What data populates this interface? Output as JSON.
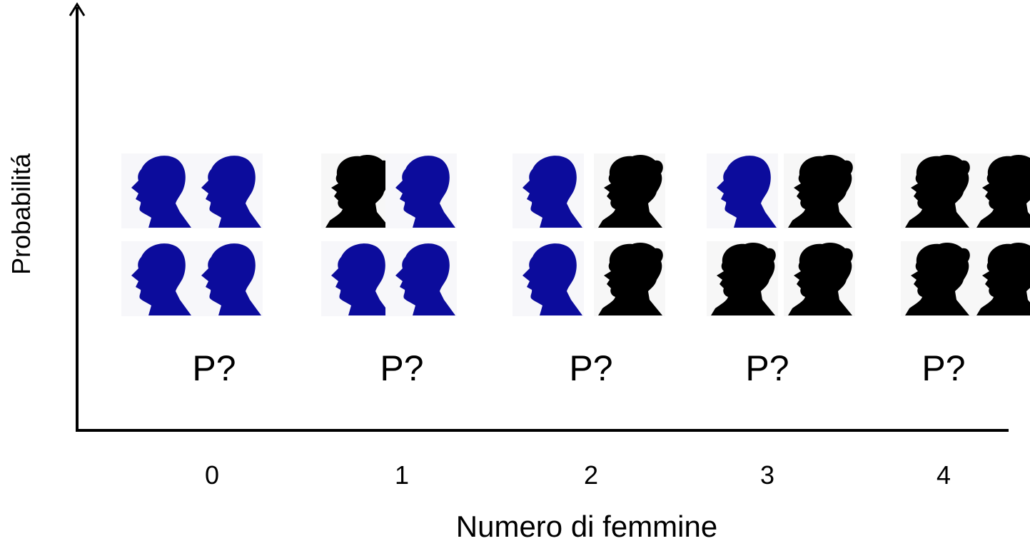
{
  "axes": {
    "y_label": "Probabilitá",
    "x_label": "Numero di femmine"
  },
  "groups": [
    {
      "category": "0",
      "label": "P?"
    },
    {
      "category": "1",
      "label": "P?"
    },
    {
      "category": "2",
      "label": "P?"
    },
    {
      "category": "3",
      "label": "P?"
    },
    {
      "category": "4",
      "label": "P?"
    }
  ]
}
